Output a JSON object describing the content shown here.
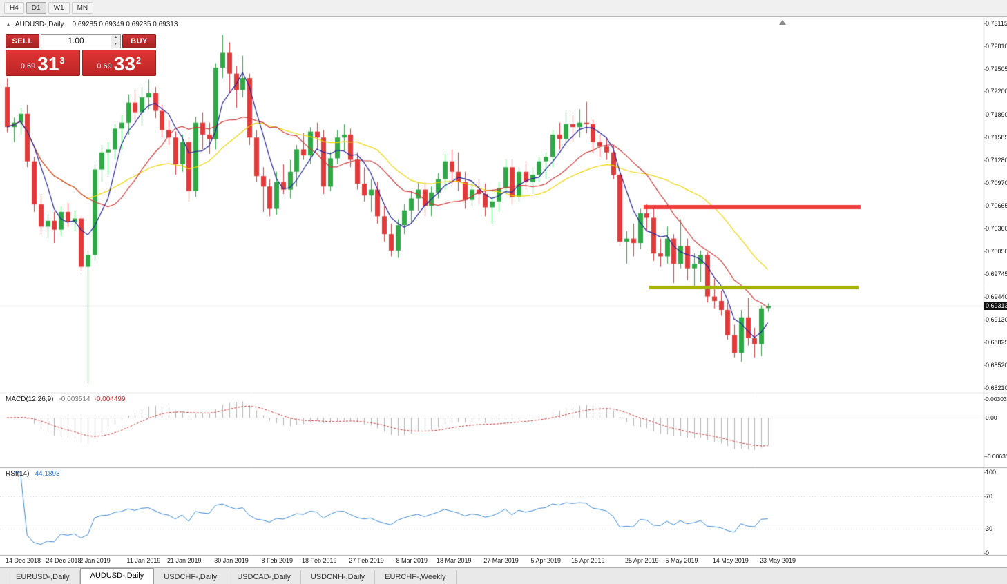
{
  "toolbar": {
    "timeframes": [
      {
        "label": "H4",
        "active": false
      },
      {
        "label": "D1",
        "active": true
      },
      {
        "label": "W1",
        "active": false
      },
      {
        "label": "MN",
        "active": false
      }
    ]
  },
  "chart": {
    "title": "AUDUSD-,Daily",
    "ohlc_text": "0.69285 0.69349 0.69235 0.69313"
  },
  "trade_panel": {
    "sell_label": "SELL",
    "buy_label": "BUY",
    "volume": "1.00",
    "sell_price": {
      "small": "0.69",
      "big": "31",
      "sup": "3"
    },
    "buy_price": {
      "small": "0.69",
      "big": "33",
      "sup": "2"
    }
  },
  "price_axis": {
    "top": 0.73115,
    "bottom": 0.6821,
    "labels": [
      "0.73115",
      "0.72810",
      "0.72505",
      "0.72200",
      "0.71890",
      "0.71585",
      "0.71280",
      "0.70970",
      "0.70665",
      "0.70360",
      "0.70050",
      "0.69745",
      "0.69440",
      "0.69130",
      "0.68825",
      "0.68520",
      "0.68210"
    ],
    "bid_label": "0.69313"
  },
  "indicators": {
    "macd": {
      "label": "MACD(12,26,9)",
      "value_main": "-0.003514",
      "value_signal": "-0.004499",
      "axis": [
        "0.00303",
        "0.00",
        "-0.00631"
      ]
    },
    "rsi": {
      "label": "RSI(14)",
      "value": "44.1893",
      "axis": [
        "100",
        "70",
        "30",
        "0"
      ]
    }
  },
  "date_axis": [
    {
      "label": "14 Dec 2018",
      "i": 0
    },
    {
      "label": "24 Dec 2018",
      "i": 6
    },
    {
      "label": "2 Jan 2019",
      "i": 11
    },
    {
      "label": "11 Jan 2019",
      "i": 18
    },
    {
      "label": "21 Jan 2019",
      "i": 24
    },
    {
      "label": "30 Jan 2019",
      "i": 31
    },
    {
      "label": "8 Feb 2019",
      "i": 38
    },
    {
      "label": "18 Feb 2019",
      "i": 44
    },
    {
      "label": "27 Feb 2019",
      "i": 51
    },
    {
      "label": "8 Mar 2019",
      "i": 58
    },
    {
      "label": "18 Mar 2019",
      "i": 64
    },
    {
      "label": "27 Mar 2019",
      "i": 71
    },
    {
      "label": "5 Apr 2019",
      "i": 78
    },
    {
      "label": "15 Apr 2019",
      "i": 84
    },
    {
      "label": "25 Apr 2019",
      "i": 92
    },
    {
      "label": "5 May 2019",
      "i": 98
    },
    {
      "label": "14 May 2019",
      "i": 105
    },
    {
      "label": "23 May 2019",
      "i": 112
    }
  ],
  "tabs": [
    {
      "label": "EURUSD-,Daily",
      "active": false
    },
    {
      "label": "AUDUSD-,Daily",
      "active": true
    },
    {
      "label": "USDCHF-,Daily",
      "active": false
    },
    {
      "label": "USDCAD-,Daily",
      "active": false
    },
    {
      "label": "USDCNH-,Daily",
      "active": false
    },
    {
      "label": "EURCHF-,Weekly",
      "active": false
    }
  ],
  "colors": {
    "candle_up": "#2fa846",
    "candle_down": "#e13a3a",
    "ma_fast": "#22229a",
    "ma_mid": "#d03a3a",
    "ma_slow": "#ecd500",
    "macd_hist": "#b4b4b4",
    "macd_signal": "#cc3535",
    "rsi_line": "#3a87d4",
    "resistance": "#f03b3b",
    "support": "#a4b400",
    "bid_line": "#b8b8b8"
  },
  "chart_data": {
    "type": "candlestick",
    "symbol": "AUDUSD-",
    "timeframe": "Daily",
    "title": "AUDUSD-,Daily",
    "ohlc_current": {
      "open": 0.69285,
      "high": 0.69349,
      "low": 0.69235,
      "close": 0.69313
    },
    "y_axis_range": [
      0.6821,
      0.73115
    ],
    "candles": [
      [
        0.7226,
        0.7238,
        0.7165,
        0.7172
      ],
      [
        0.7172,
        0.7185,
        0.7152,
        0.7178
      ],
      [
        0.7178,
        0.7198,
        0.7162,
        0.719
      ],
      [
        0.719,
        0.7202,
        0.7118,
        0.7126
      ],
      [
        0.7126,
        0.7132,
        0.7058,
        0.7068
      ],
      [
        0.7068,
        0.7082,
        0.7028,
        0.7038
      ],
      [
        0.7038,
        0.7055,
        0.7022,
        0.7046
      ],
      [
        0.7046,
        0.7058,
        0.7016,
        0.7034
      ],
      [
        0.7034,
        0.7065,
        0.7025,
        0.7058
      ],
      [
        0.7058,
        0.707,
        0.7038,
        0.7044
      ],
      [
        0.7044,
        0.706,
        0.7032,
        0.7049
      ],
      [
        0.7049,
        0.7052,
        0.6978,
        0.6984
      ],
      [
        0.6984,
        0.7006,
        0.6827,
        0.7
      ],
      [
        0.7,
        0.7122,
        0.6992,
        0.7115
      ],
      [
        0.7115,
        0.7148,
        0.7098,
        0.7138
      ],
      [
        0.7138,
        0.7152,
        0.7108,
        0.7142
      ],
      [
        0.7142,
        0.7176,
        0.7128,
        0.717
      ],
      [
        0.717,
        0.7188,
        0.7142,
        0.7178
      ],
      [
        0.7178,
        0.7216,
        0.7162,
        0.7205
      ],
      [
        0.7205,
        0.7222,
        0.7178,
        0.7192
      ],
      [
        0.7192,
        0.7226,
        0.7174,
        0.7212
      ],
      [
        0.7212,
        0.7236,
        0.7196,
        0.7218
      ],
      [
        0.7218,
        0.7226,
        0.7184,
        0.7194
      ],
      [
        0.7194,
        0.7202,
        0.7158,
        0.7168
      ],
      [
        0.7168,
        0.7182,
        0.7148,
        0.7158
      ],
      [
        0.7158,
        0.7166,
        0.7108,
        0.7122
      ],
      [
        0.7122,
        0.7162,
        0.7112,
        0.7152
      ],
      [
        0.7152,
        0.7158,
        0.7072,
        0.7086
      ],
      [
        0.7086,
        0.7186,
        0.7078,
        0.7178
      ],
      [
        0.7178,
        0.7192,
        0.7142,
        0.7162
      ],
      [
        0.7162,
        0.7178,
        0.7136,
        0.7156
      ],
      [
        0.7156,
        0.7258,
        0.7142,
        0.7252
      ],
      [
        0.7252,
        0.7296,
        0.7238,
        0.7272
      ],
      [
        0.7272,
        0.7286,
        0.7218,
        0.7244
      ],
      [
        0.7244,
        0.7254,
        0.7198,
        0.7222
      ],
      [
        0.7222,
        0.7268,
        0.7212,
        0.7238
      ],
      [
        0.7238,
        0.7244,
        0.7148,
        0.7158
      ],
      [
        0.7158,
        0.7168,
        0.7098,
        0.7106
      ],
      [
        0.7106,
        0.7118,
        0.7058,
        0.7092
      ],
      [
        0.7092,
        0.7102,
        0.7052,
        0.7062
      ],
      [
        0.7062,
        0.7112,
        0.7054,
        0.7098
      ],
      [
        0.7098,
        0.7122,
        0.7082,
        0.7088
      ],
      [
        0.7088,
        0.7128,
        0.7076,
        0.7112
      ],
      [
        0.7112,
        0.7148,
        0.7092,
        0.7142
      ],
      [
        0.7142,
        0.7164,
        0.7128,
        0.7134
      ],
      [
        0.7134,
        0.7172,
        0.7122,
        0.7166
      ],
      [
        0.7166,
        0.7178,
        0.7142,
        0.7158
      ],
      [
        0.7158,
        0.7168,
        0.7082,
        0.7092
      ],
      [
        0.7092,
        0.7138,
        0.7086,
        0.713
      ],
      [
        0.713,
        0.7168,
        0.7122,
        0.7158
      ],
      [
        0.7158,
        0.7176,
        0.714,
        0.7162
      ],
      [
        0.7162,
        0.717,
        0.7118,
        0.7128
      ],
      [
        0.7128,
        0.7138,
        0.7088,
        0.7096
      ],
      [
        0.7096,
        0.7118,
        0.7072,
        0.708
      ],
      [
        0.708,
        0.7102,
        0.7058,
        0.7088
      ],
      [
        0.7088,
        0.7098,
        0.7042,
        0.7052
      ],
      [
        0.7052,
        0.7066,
        0.7018,
        0.7028
      ],
      [
        0.7028,
        0.7042,
        0.6998,
        0.7006
      ],
      [
        0.7006,
        0.7048,
        0.6996,
        0.704
      ],
      [
        0.704,
        0.7068,
        0.7028,
        0.706
      ],
      [
        0.706,
        0.7086,
        0.7042,
        0.7076
      ],
      [
        0.7076,
        0.7098,
        0.706,
        0.7088
      ],
      [
        0.7088,
        0.7098,
        0.7052,
        0.7066
      ],
      [
        0.7066,
        0.7092,
        0.7052,
        0.7084
      ],
      [
        0.7084,
        0.711,
        0.7076,
        0.7102
      ],
      [
        0.7102,
        0.7136,
        0.7088,
        0.7126
      ],
      [
        0.7126,
        0.7142,
        0.7096,
        0.7112
      ],
      [
        0.7112,
        0.7138,
        0.7086,
        0.7098
      ],
      [
        0.7098,
        0.7112,
        0.7062,
        0.7074
      ],
      [
        0.7074,
        0.7098,
        0.7066,
        0.7088
      ],
      [
        0.7088,
        0.7102,
        0.7068,
        0.7082
      ],
      [
        0.7082,
        0.7096,
        0.7052,
        0.7064
      ],
      [
        0.7064,
        0.7078,
        0.7042,
        0.7072
      ],
      [
        0.7072,
        0.7098,
        0.7058,
        0.709
      ],
      [
        0.709,
        0.7128,
        0.7082,
        0.7118
      ],
      [
        0.7118,
        0.7128,
        0.7068,
        0.7078
      ],
      [
        0.7078,
        0.7118,
        0.7072,
        0.7112
      ],
      [
        0.7112,
        0.7126,
        0.7088,
        0.7098
      ],
      [
        0.7098,
        0.7118,
        0.7082,
        0.7108
      ],
      [
        0.7108,
        0.7132,
        0.7098,
        0.7126
      ],
      [
        0.7126,
        0.7138,
        0.7102,
        0.7132
      ],
      [
        0.7132,
        0.7168,
        0.7118,
        0.7162
      ],
      [
        0.7162,
        0.7178,
        0.7142,
        0.7156
      ],
      [
        0.7156,
        0.7192,
        0.7146,
        0.7176
      ],
      [
        0.7176,
        0.7188,
        0.7152,
        0.7172
      ],
      [
        0.7172,
        0.7196,
        0.7158,
        0.7178
      ],
      [
        0.7178,
        0.7206,
        0.7164,
        0.7176
      ],
      [
        0.7176,
        0.7182,
        0.7138,
        0.7152
      ],
      [
        0.7152,
        0.7162,
        0.7132,
        0.7146
      ],
      [
        0.7146,
        0.7158,
        0.7128,
        0.7138
      ],
      [
        0.7138,
        0.7148,
        0.7102,
        0.7108
      ],
      [
        0.7108,
        0.7112,
        0.7012,
        0.7018
      ],
      [
        0.7018,
        0.7032,
        0.6988,
        0.7022
      ],
      [
        0.7022,
        0.7042,
        0.6998,
        0.7016
      ],
      [
        0.7016,
        0.7062,
        0.7008,
        0.7056
      ],
      [
        0.7056,
        0.7068,
        0.7032,
        0.705
      ],
      [
        0.705,
        0.7062,
        0.6992,
        0.7002
      ],
      [
        0.7002,
        0.7022,
        0.6984,
        0.6998
      ],
      [
        0.6998,
        0.7038,
        0.6988,
        0.7022
      ],
      [
        0.7022,
        0.7028,
        0.6962,
        0.6988
      ],
      [
        0.6988,
        0.7048,
        0.6982,
        0.7012
      ],
      [
        0.7012,
        0.7022,
        0.6966,
        0.6982
      ],
      [
        0.6982,
        0.7002,
        0.6958,
        0.6988
      ],
      [
        0.6988,
        0.7006,
        0.6964,
        0.7
      ],
      [
        0.7,
        0.7004,
        0.6936,
        0.6944
      ],
      [
        0.6944,
        0.6968,
        0.6928,
        0.6938
      ],
      [
        0.6938,
        0.6952,
        0.6918,
        0.6926
      ],
      [
        0.6926,
        0.6936,
        0.6886,
        0.6892
      ],
      [
        0.6892,
        0.6906,
        0.6862,
        0.6868
      ],
      [
        0.6868,
        0.6926,
        0.6856,
        0.6916
      ],
      [
        0.6916,
        0.6942,
        0.6878,
        0.6888
      ],
      [
        0.6888,
        0.6902,
        0.6862,
        0.688
      ],
      [
        0.688,
        0.6932,
        0.6864,
        0.6928
      ],
      [
        0.69285,
        0.69349,
        0.69235,
        0.69313
      ]
    ],
    "moving_averages": [
      {
        "period": 5,
        "color_key": "ma_fast"
      },
      {
        "period": 13,
        "color_key": "ma_mid"
      },
      {
        "period": 25,
        "color_key": "ma_slow"
      }
    ],
    "horizontal_lines": [
      {
        "price": 0.7064,
        "color_key": "resistance"
      },
      {
        "price": 0.6957,
        "color_key": "support"
      }
    ],
    "bid_line": 0.69313,
    "indicators": {
      "macd": {
        "params": [
          12,
          26,
          9
        ],
        "main": -0.003514,
        "signal": -0.004499
      },
      "rsi": {
        "period": 14,
        "value": 44.1893
      }
    }
  }
}
